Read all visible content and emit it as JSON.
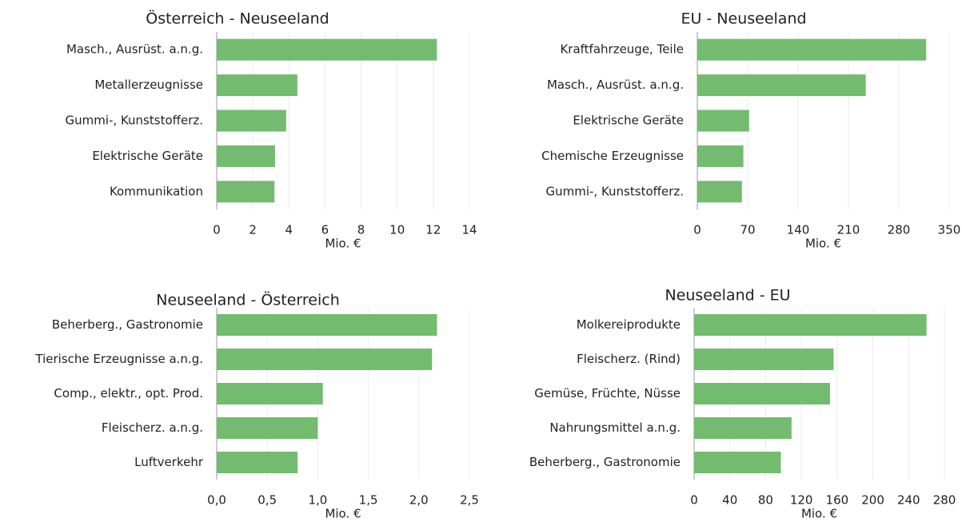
{
  "chart_data": [
    {
      "type": "bar",
      "title": "Österreich - Neuseeland",
      "x_label": "Mio. €",
      "categories": [
        "Masch., Ausrüst. a.n.g.",
        "Metallerzeugnisse",
        "Gummi-, Kunststofferz.",
        "Elektrische Geräte",
        "Kommunikation"
      ],
      "values": [
        12.2,
        4.47,
        3.85,
        3.23,
        3.2
      ],
      "color": "#72bb6f",
      "xlim": [
        0,
        14
      ],
      "xticks": [
        0,
        2,
        4,
        6,
        8,
        10,
        12,
        14
      ],
      "grid": true
    },
    {
      "type": "bar",
      "title": "EU - Neuseeland",
      "x_label": "Mio. €",
      "categories": [
        "Kraftfahrzeuge, Teile",
        "Masch., Ausrüst. a.n.g.",
        "Elektrische Geräte",
        "Chemische Erzeugnisse",
        "Gummi-, Kunststofferz."
      ],
      "values": [
        318,
        234,
        72,
        64,
        62
      ],
      "color": "#72bb6f",
      "xlim": [
        0,
        350
      ],
      "xticks": [
        0,
        70,
        140,
        210,
        280,
        350
      ],
      "grid": true
    },
    {
      "type": "bar",
      "title": "Neuseeland - Österreich",
      "x_label": "Mio. €",
      "categories": [
        "Beherberg., Gastronomie",
        "Tierische Erzeugnisse a.n.g.",
        "Comp., elektr., opt. Prod.",
        "Fleischerz. a.n.g.",
        "Luftverkehr"
      ],
      "values": [
        2.18,
        2.13,
        1.05,
        1.0,
        0.8
      ],
      "color": "#72bb6f",
      "xlim": [
        0,
        2.5
      ],
      "xticks": [
        {
          "value": 0,
          "label": "0,0"
        },
        {
          "value": 0.5,
          "label": "0,5"
        },
        {
          "value": 1,
          "label": "1,0"
        },
        {
          "value": 1.5,
          "label": "1,5"
        },
        {
          "value": 2,
          "label": "2,0"
        },
        {
          "value": 2.5,
          "label": "2,5"
        }
      ],
      "grid": true
    },
    {
      "type": "bar",
      "title": "Neuseeland - EU",
      "x_label": "Mio. €",
      "categories": [
        "Molkereiprodukte",
        "Fleischerz. (Rind)",
        "Gemüse, Früchte, Nüsse",
        "Nahrungsmittel a.n.g.",
        "Beherberg., Gastronomie"
      ],
      "values": [
        260,
        156,
        152,
        109,
        97
      ],
      "color": "#72bb6f",
      "xlim": [
        0,
        280
      ],
      "xticks": [
        0,
        40,
        80,
        120,
        160,
        200,
        240,
        280
      ],
      "grid": true
    }
  ]
}
